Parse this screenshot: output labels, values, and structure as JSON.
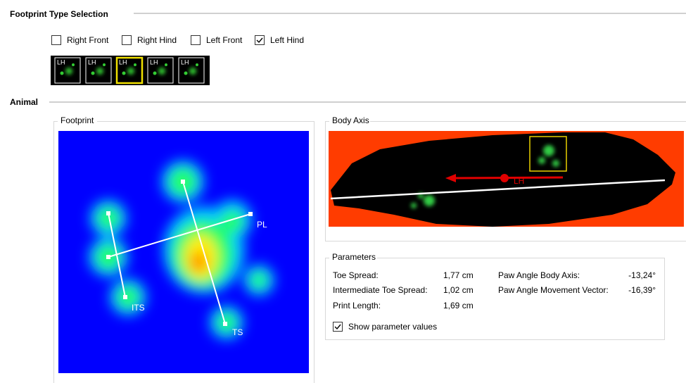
{
  "footprint_type_selection": {
    "title": "Footprint Type Selection",
    "options": [
      {
        "label": "Right Front",
        "checked": false
      },
      {
        "label": "Right Hind",
        "checked": false
      },
      {
        "label": "Left Front",
        "checked": false
      },
      {
        "label": "Left Hind",
        "checked": true
      }
    ],
    "thumbnails": [
      "LH",
      "LH",
      "LH",
      "LH",
      "LH"
    ],
    "selected_thumbnail": 2
  },
  "animal": {
    "title": "Animal",
    "footprint": {
      "title": "Footprint",
      "labels": [
        "PL",
        "ITS",
        "TS"
      ]
    },
    "body_axis": {
      "title": "Body Axis",
      "label": "LH"
    },
    "parameters": {
      "title": "Parameters",
      "rows": [
        [
          "Toe Spread:",
          "1,77 cm"
        ],
        [
          "Intermediate Toe Spread:",
          "1,02 cm"
        ],
        [
          "Print Length:",
          "1,69 cm"
        ]
      ],
      "angles": [
        [
          "Paw Angle Body Axis:",
          "-13,24°"
        ],
        [
          "Paw Angle Movement Vector:",
          "-16,39°"
        ]
      ],
      "show_values": {
        "label": "Show parameter values",
        "checked": true
      }
    }
  }
}
